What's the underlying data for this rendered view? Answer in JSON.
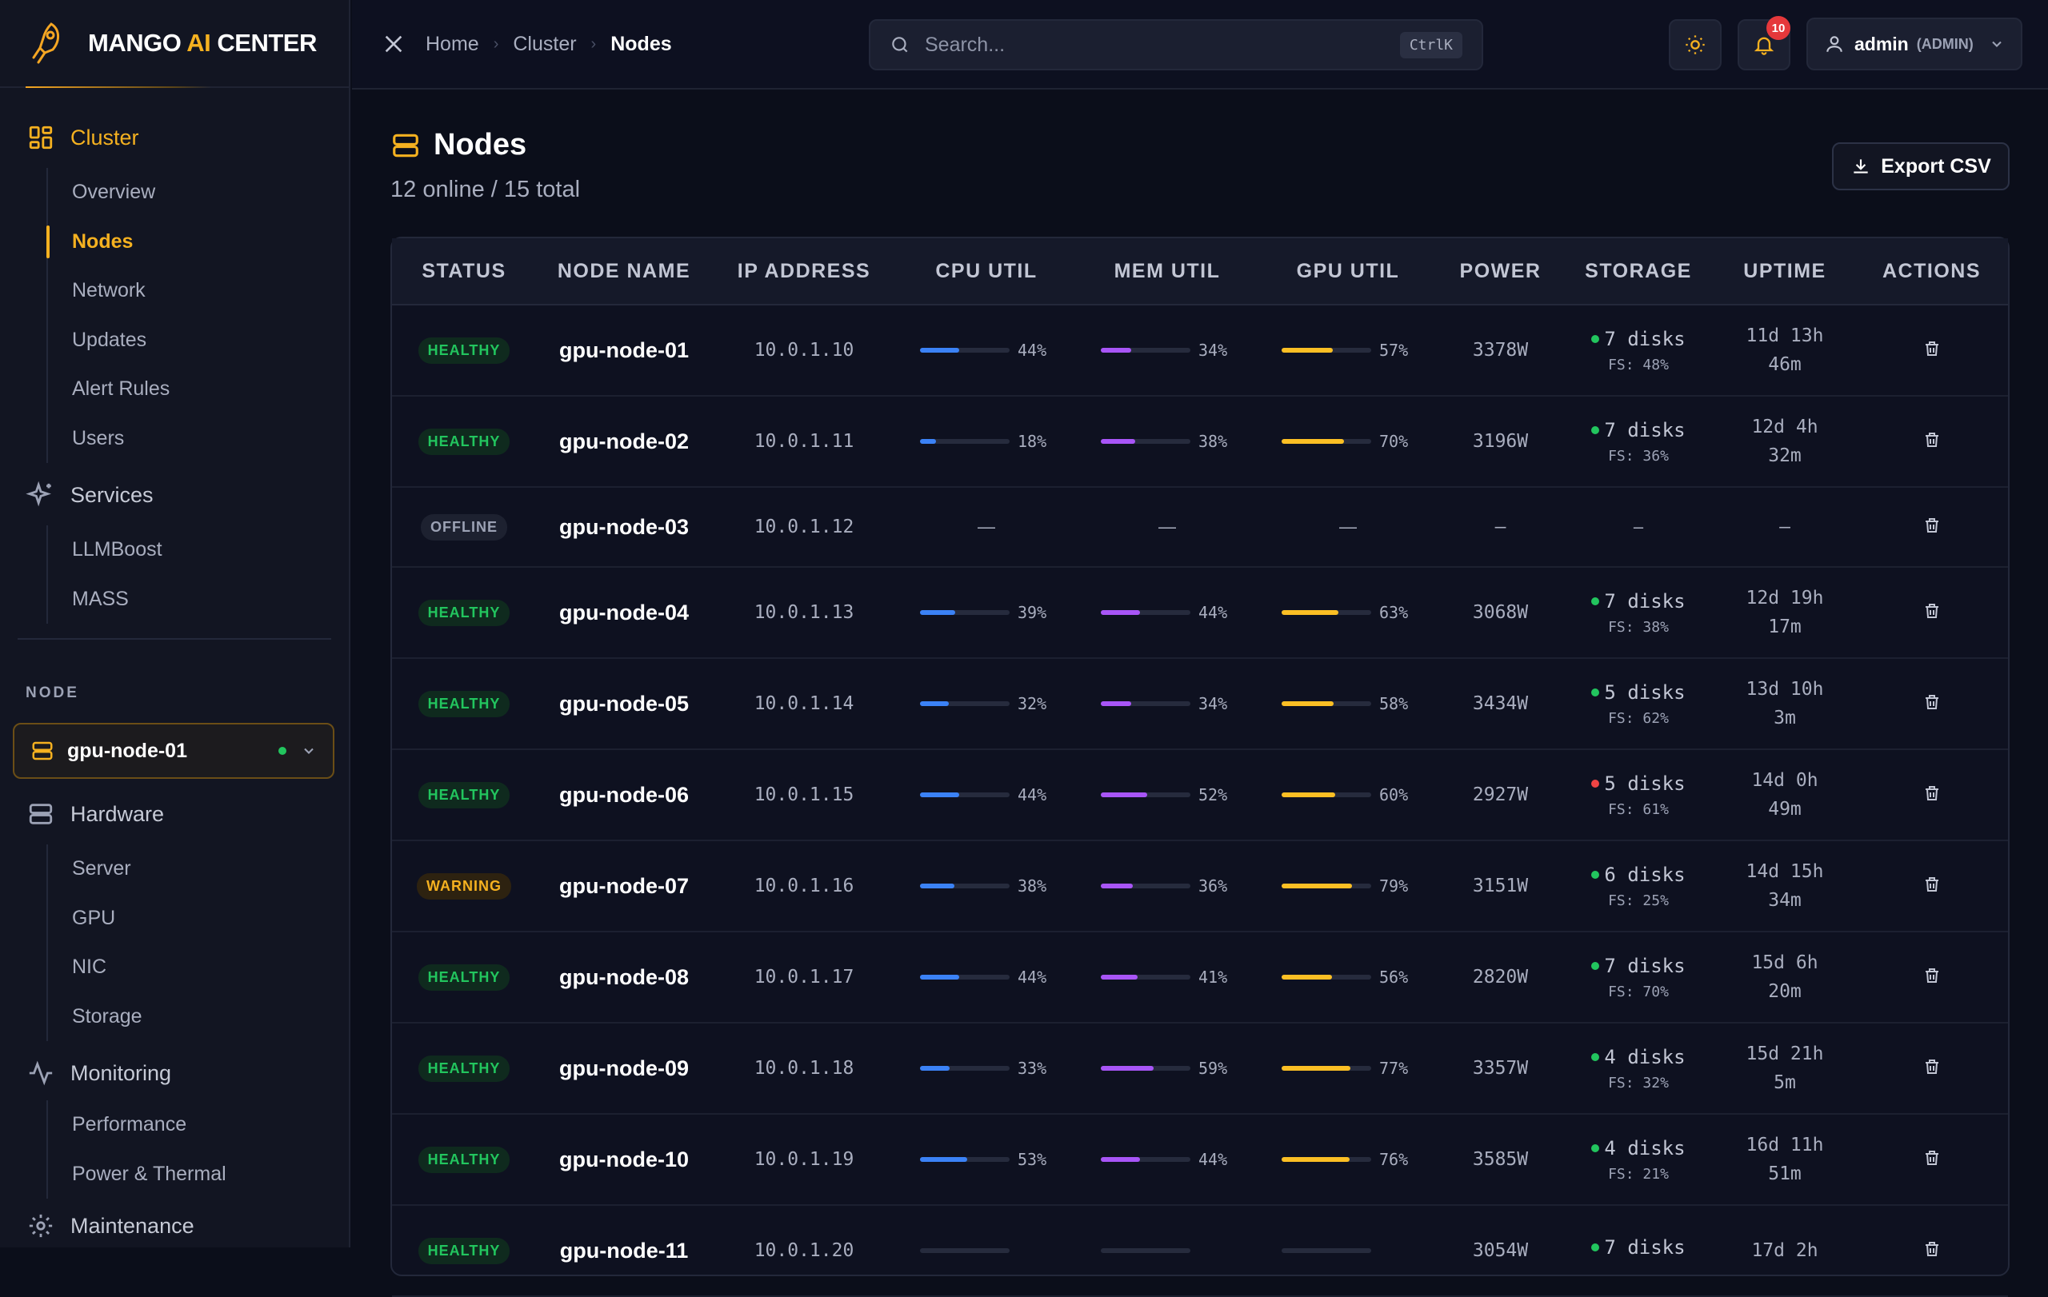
{
  "brand": {
    "pre": "MANGO ",
    "ai": "AI",
    "post": " CENTER"
  },
  "colors": {
    "accent": "#f5b120",
    "healthy": "#22c55e",
    "warning": "#f5b120",
    "error": "#ef4444",
    "cpu": "#3b82f6",
    "mem": "#a855f7",
    "gpu": "#fbbf24"
  },
  "sidebar": {
    "cluster": {
      "label": "Cluster",
      "icon": "grid-icon",
      "items": [
        "Overview",
        "Nodes",
        "Network",
        "Updates",
        "Alert Rules",
        "Users"
      ]
    },
    "services": {
      "label": "Services",
      "icon": "sparkles-icon",
      "items": [
        "LLMBoost",
        "MASS"
      ]
    },
    "node_section_label": "NODE",
    "node_select": {
      "value": "gpu-node-01"
    },
    "hardware": {
      "label": "Hardware",
      "icon": "server-icon",
      "items": [
        "Server",
        "GPU",
        "NIC",
        "Storage"
      ]
    },
    "monitoring": {
      "label": "Monitoring",
      "icon": "activity-icon",
      "items": [
        "Performance",
        "Power & Thermal"
      ]
    },
    "maintenance": {
      "label": "Maintenance",
      "icon": "gear-icon"
    }
  },
  "topbar": {
    "breadcrumbs": [
      "Home",
      "Cluster",
      "Nodes"
    ],
    "search_placeholder": "Search...",
    "search_shortcut": "CtrlK",
    "notifications_count": "10",
    "user_name": "admin",
    "user_role": "(ADMIN)"
  },
  "page": {
    "title": "Nodes",
    "subtitle": "12 online / 15 total",
    "export_label": "Export CSV"
  },
  "table": {
    "columns": [
      "STATUS",
      "NODE NAME",
      "IP ADDRESS",
      "CPU UTIL",
      "MEM UTIL",
      "GPU UTIL",
      "POWER",
      "STORAGE",
      "UPTIME",
      "ACTIONS"
    ],
    "rows": [
      {
        "status": "HEALTHY",
        "name": "gpu-node-01",
        "ip": "10.0.1.10",
        "cpu": "44%",
        "mem": "34%",
        "gpu": "57%",
        "power": "3378W",
        "disks": "7 disks",
        "fs": "FS: 48%",
        "disk_ok": true,
        "uptime1": "11d 13h",
        "uptime2": "46m"
      },
      {
        "status": "HEALTHY",
        "name": "gpu-node-02",
        "ip": "10.0.1.11",
        "cpu": "18%",
        "mem": "38%",
        "gpu": "70%",
        "power": "3196W",
        "disks": "7 disks",
        "fs": "FS: 36%",
        "disk_ok": true,
        "uptime1": "12d 4h",
        "uptime2": "32m"
      },
      {
        "status": "OFFLINE",
        "name": "gpu-node-03",
        "ip": "10.0.1.12",
        "cpu": "—",
        "mem": "—",
        "gpu": "—",
        "power": "–",
        "disks": "–",
        "fs": "",
        "disk_ok": null,
        "uptime1": "–",
        "uptime2": ""
      },
      {
        "status": "HEALTHY",
        "name": "gpu-node-04",
        "ip": "10.0.1.13",
        "cpu": "39%",
        "mem": "44%",
        "gpu": "63%",
        "power": "3068W",
        "disks": "7 disks",
        "fs": "FS: 38%",
        "disk_ok": true,
        "uptime1": "12d 19h",
        "uptime2": "17m"
      },
      {
        "status": "HEALTHY",
        "name": "gpu-node-05",
        "ip": "10.0.1.14",
        "cpu": "32%",
        "mem": "34%",
        "gpu": "58%",
        "power": "3434W",
        "disks": "5 disks",
        "fs": "FS: 62%",
        "disk_ok": true,
        "uptime1": "13d 10h",
        "uptime2": "3m"
      },
      {
        "status": "HEALTHY",
        "name": "gpu-node-06",
        "ip": "10.0.1.15",
        "cpu": "44%",
        "mem": "52%",
        "gpu": "60%",
        "power": "2927W",
        "disks": "5 disks",
        "fs": "FS: 61%",
        "disk_ok": false,
        "uptime1": "14d 0h",
        "uptime2": "49m"
      },
      {
        "status": "WARNING",
        "name": "gpu-node-07",
        "ip": "10.0.1.16",
        "cpu": "38%",
        "mem": "36%",
        "gpu": "79%",
        "power": "3151W",
        "disks": "6 disks",
        "fs": "FS: 25%",
        "disk_ok": true,
        "uptime1": "14d 15h",
        "uptime2": "34m"
      },
      {
        "status": "HEALTHY",
        "name": "gpu-node-08",
        "ip": "10.0.1.17",
        "cpu": "44%",
        "mem": "41%",
        "gpu": "56%",
        "power": "2820W",
        "disks": "7 disks",
        "fs": "FS: 70%",
        "disk_ok": true,
        "uptime1": "15d 6h",
        "uptime2": "20m"
      },
      {
        "status": "HEALTHY",
        "name": "gpu-node-09",
        "ip": "10.0.1.18",
        "cpu": "33%",
        "mem": "59%",
        "gpu": "77%",
        "power": "3357W",
        "disks": "4 disks",
        "fs": "FS: 32%",
        "disk_ok": true,
        "uptime1": "15d 21h",
        "uptime2": "5m"
      },
      {
        "status": "HEALTHY",
        "name": "gpu-node-10",
        "ip": "10.0.1.19",
        "cpu": "53%",
        "mem": "44%",
        "gpu": "76%",
        "power": "3585W",
        "disks": "4 disks",
        "fs": "FS: 21%",
        "disk_ok": true,
        "uptime1": "16d 11h",
        "uptime2": "51m"
      },
      {
        "status": "HEALTHY",
        "name": "gpu-node-11",
        "ip": "10.0.1.20",
        "cpu": "",
        "mem": "",
        "gpu": "",
        "power": "3054W",
        "disks": "7 disks",
        "fs": "",
        "disk_ok": true,
        "uptime1": "17d 2h",
        "uptime2": ""
      }
    ]
  }
}
